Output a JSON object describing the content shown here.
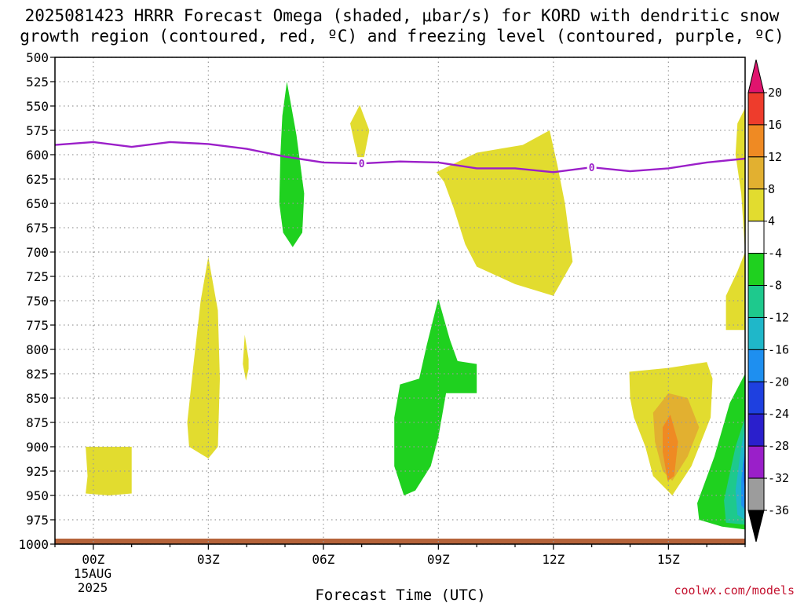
{
  "title_line1": "2025081423 HRRR Forecast Omega (shaded, μbar/s) for KORD with dendritic snow",
  "title_line2": "growth region (contoured, red, ºC) and freezing level (contoured, purple, ºC)",
  "xlabel": "Forecast Time (UTC)",
  "date_day": "15AUG",
  "date_year": "2025",
  "credit": "coolwx.com/models",
  "chart_data": {
    "type": "contour",
    "y_axis": {
      "label": "",
      "unit": "hPa",
      "range": [
        1000,
        500
      ],
      "ticks": [
        500,
        525,
        550,
        575,
        600,
        625,
        650,
        675,
        700,
        725,
        750,
        775,
        800,
        825,
        850,
        875,
        900,
        925,
        950,
        975,
        1000
      ]
    },
    "x_axis": {
      "label": "Forecast Time (UTC)",
      "range_hours_from_00Z": [
        -1,
        17
      ],
      "ticks": [
        {
          "hour": 0,
          "label": "00Z"
        },
        {
          "hour": 3,
          "label": "03Z"
        },
        {
          "hour": 6,
          "label": "06Z"
        },
        {
          "hour": 9,
          "label": "09Z"
        },
        {
          "hour": 12,
          "label": "12Z"
        },
        {
          "hour": 15,
          "label": "15Z"
        }
      ]
    },
    "grid": true,
    "colorbar": {
      "labels": [
        "20",
        "16",
        "12",
        "8",
        "4",
        "-4",
        "-8",
        "-12",
        "-16",
        "-20",
        "-24",
        "-28",
        "-32",
        "-36"
      ],
      "colors": [
        "#e0146e",
        "#ee3c2c",
        "#ef8a23",
        "#e2b030",
        "#e2dc2f",
        "#ffffff",
        "#1fd11f",
        "#1ec98d",
        "#1fb7c9",
        "#1e8ff0",
        "#1e40e0",
        "#2a1fcc",
        "#9a1fc9",
        "#9c9c9c",
        "#000000"
      ]
    },
    "freezing_level": {
      "color": "#9b1fc9",
      "contour_label": "0",
      "points": [
        [
          -1,
          590
        ],
        [
          0,
          587
        ],
        [
          1,
          592
        ],
        [
          2,
          587
        ],
        [
          3,
          589
        ],
        [
          4,
          594
        ],
        [
          5,
          602
        ],
        [
          6,
          608
        ],
        [
          7,
          609
        ],
        [
          8,
          607
        ],
        [
          9,
          608
        ],
        [
          10,
          614
        ],
        [
          11,
          614
        ],
        [
          12,
          618
        ],
        [
          13,
          613
        ],
        [
          14,
          617
        ],
        [
          15,
          614
        ],
        [
          16,
          608
        ],
        [
          17,
          604
        ]
      ]
    },
    "omega_regions": [
      {
        "name": "yellow",
        "value_range": [
          4,
          8
        ],
        "color": "#e2dc2f",
        "points": [
          [
            -0.2,
            948
          ],
          [
            -0.15,
            930
          ],
          [
            -0.2,
            900
          ],
          [
            1,
            900
          ],
          [
            1,
            948
          ],
          [
            0.4,
            950
          ]
        ]
      },
      {
        "name": "yellow",
        "value_range": [
          4,
          8
        ],
        "color": "#e2dc2f",
        "points": [
          [
            2.45,
            875
          ],
          [
            2.6,
            820
          ],
          [
            2.8,
            750
          ],
          [
            3.0,
            705
          ],
          [
            3.25,
            760
          ],
          [
            3.3,
            830
          ],
          [
            3.25,
            900
          ],
          [
            3.0,
            912
          ],
          [
            2.5,
            900
          ]
        ]
      },
      {
        "name": "yellow",
        "value_range": [
          4,
          8
        ],
        "color": "#e2dc2f",
        "points": [
          [
            3.95,
            785
          ],
          [
            4.05,
            810
          ],
          [
            4.05,
            820
          ],
          [
            3.98,
            832
          ],
          [
            3.9,
            815
          ]
        ]
      },
      {
        "name": "yellow",
        "value_range": [
          4,
          8
        ],
        "color": "#e2dc2f",
        "points": [
          [
            6.7,
            568
          ],
          [
            6.95,
            549
          ],
          [
            7.2,
            575
          ],
          [
            7.05,
            605
          ],
          [
            6.95,
            613
          ],
          [
            6.85,
            595
          ]
        ]
      },
      {
        "name": "yellow",
        "value_range": [
          4,
          8
        ],
        "color": "#e2dc2f",
        "points": [
          [
            8.95,
            618
          ],
          [
            10.0,
            598
          ],
          [
            11.2,
            590
          ],
          [
            11.9,
            575
          ],
          [
            12.1,
            610
          ],
          [
            12.3,
            650
          ],
          [
            12.5,
            710
          ],
          [
            12.0,
            745
          ],
          [
            11.0,
            733
          ],
          [
            10.0,
            715
          ],
          [
            9.7,
            692
          ],
          [
            9.4,
            655
          ],
          [
            9.15,
            628
          ]
        ]
      },
      {
        "name": "yellow",
        "value_range": [
          4,
          8
        ],
        "color": "#e2dc2f",
        "points": [
          [
            13.98,
            823
          ],
          [
            15.0,
            819
          ],
          [
            16.0,
            813
          ],
          [
            16.15,
            830
          ],
          [
            16.1,
            870
          ],
          [
            15.6,
            920
          ],
          [
            15.1,
            950
          ],
          [
            14.6,
            930
          ],
          [
            14.4,
            900
          ],
          [
            14.1,
            870
          ],
          [
            14.0,
            850
          ]
        ]
      },
      {
        "name": "yellow",
        "value_range": [
          4,
          8
        ],
        "color": "#e2dc2f",
        "points": [
          [
            16.8,
            568
          ],
          [
            17,
            552
          ],
          [
            17,
            700
          ],
          [
            16.9,
            640
          ],
          [
            16.75,
            600
          ]
        ]
      },
      {
        "name": "yellow",
        "value_range": [
          4,
          8
        ],
        "color": "#e2dc2f",
        "points": [
          [
            16.5,
            745
          ],
          [
            16.8,
            720
          ],
          [
            17,
            700
          ],
          [
            17,
            780
          ],
          [
            16.5,
            780
          ]
        ]
      },
      {
        "name": "orange",
        "value_range": [
          8,
          12
        ],
        "color": "#e2b030",
        "points": [
          [
            14.6,
            865
          ],
          [
            15.0,
            845
          ],
          [
            15.5,
            850
          ],
          [
            15.8,
            880
          ],
          [
            15.5,
            910
          ],
          [
            15.1,
            935
          ],
          [
            14.85,
            925
          ],
          [
            14.65,
            895
          ]
        ]
      },
      {
        "name": "orange",
        "value_range": [
          12,
          16
        ],
        "color": "#ef8a23",
        "points": [
          [
            14.85,
            880
          ],
          [
            15.05,
            867
          ],
          [
            15.25,
            895
          ],
          [
            15.15,
            930
          ],
          [
            14.98,
            935
          ],
          [
            14.85,
            905
          ]
        ]
      },
      {
        "name": "green",
        "value_range": [
          -8,
          -4
        ],
        "color": "#1fd11f",
        "points": [
          [
            5.05,
            525
          ],
          [
            5.3,
            580
          ],
          [
            5.5,
            640
          ],
          [
            5.45,
            680
          ],
          [
            5.2,
            695
          ],
          [
            4.95,
            680
          ],
          [
            4.85,
            650
          ],
          [
            4.88,
            600
          ],
          [
            4.93,
            560
          ]
        ]
      },
      {
        "name": "green",
        "value_range": [
          -8,
          -4
        ],
        "color": "#1fd11f",
        "points": [
          [
            7.85,
            870
          ],
          [
            8.0,
            836
          ],
          [
            8.5,
            830
          ],
          [
            8.7,
            795
          ],
          [
            9.0,
            748
          ],
          [
            9.3,
            790
          ],
          [
            9.5,
            812
          ],
          [
            10.0,
            815
          ],
          [
            10.0,
            845
          ],
          [
            9.2,
            845
          ],
          [
            9.0,
            890
          ],
          [
            8.8,
            920
          ],
          [
            8.4,
            945
          ],
          [
            8.1,
            950
          ],
          [
            7.85,
            920
          ]
        ]
      },
      {
        "name": "green",
        "value_range": [
          -8,
          -4
        ],
        "color": "#1fd11f",
        "points": [
          [
            15.75,
            958
          ],
          [
            16.2,
            910
          ],
          [
            16.6,
            855
          ],
          [
            17,
            825
          ],
          [
            17,
            985
          ],
          [
            16.4,
            982
          ],
          [
            15.8,
            975
          ]
        ]
      },
      {
        "name": "teal",
        "value_range": [
          -12,
          -8
        ],
        "color": "#1ec98d",
        "points": [
          [
            16.45,
            955
          ],
          [
            16.75,
            900
          ],
          [
            17,
            870
          ],
          [
            17,
            980
          ],
          [
            16.5,
            978
          ]
        ]
      },
      {
        "name": "cyan",
        "value_range": [
          -16,
          -12
        ],
        "color": "#1fb7c9",
        "points": [
          [
            16.75,
            945
          ],
          [
            16.9,
            900
          ],
          [
            17,
            880
          ],
          [
            17,
            975
          ],
          [
            16.8,
            970
          ]
        ]
      },
      {
        "name": "blue",
        "value_range": [
          -20,
          -16
        ],
        "color": "#1e8ff0",
        "points": [
          [
            16.9,
            935
          ],
          [
            17,
            895
          ],
          [
            17,
            965
          ],
          [
            16.9,
            960
          ]
        ]
      },
      {
        "name": "darkblue",
        "value_range": [
          -24,
          -20
        ],
        "color": "#1e40e0",
        "points": [
          [
            16.97,
            918
          ],
          [
            17,
            905
          ],
          [
            17,
            945
          ],
          [
            16.97,
            935
          ]
        ]
      }
    ],
    "terrain_color": "#b5633a"
  }
}
